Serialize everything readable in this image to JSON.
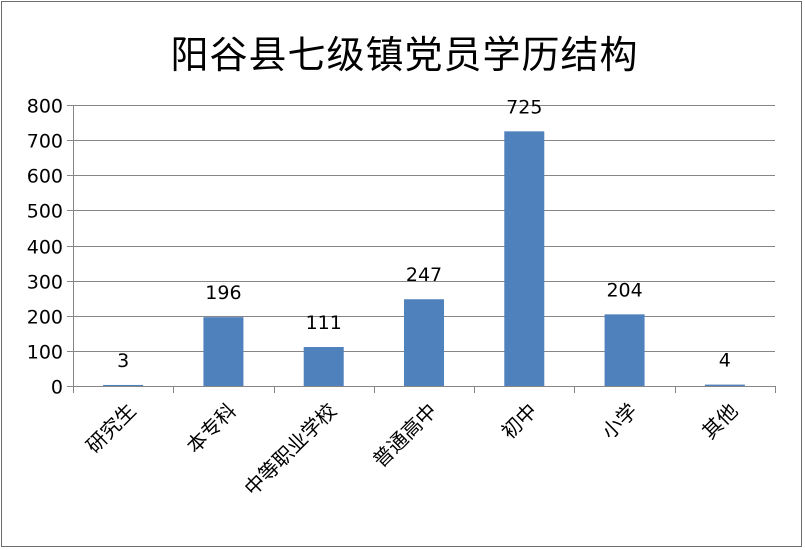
{
  "chart_data": {
    "type": "bar",
    "title": "阳谷县七级镇党员学历结构",
    "categories": [
      "研究生",
      "本专科",
      "中等职业学校",
      "普通高中",
      "初中",
      "小学",
      "其他"
    ],
    "values": [
      3,
      196,
      111,
      247,
      725,
      204,
      4
    ],
    "data_labels": [
      "3",
      "196",
      "111",
      "247",
      "725",
      "204",
      "4"
    ],
    "ylim": [
      0,
      800
    ],
    "yticks": [
      0,
      100,
      200,
      300,
      400,
      500,
      600,
      700,
      800
    ],
    "ytick_labels": [
      "0",
      "100",
      "200",
      "300",
      "400",
      "500",
      "600",
      "700",
      "800"
    ],
    "grid": true,
    "bar_color": "#4f81bd",
    "grid_color": "#868686",
    "legend": "none"
  }
}
